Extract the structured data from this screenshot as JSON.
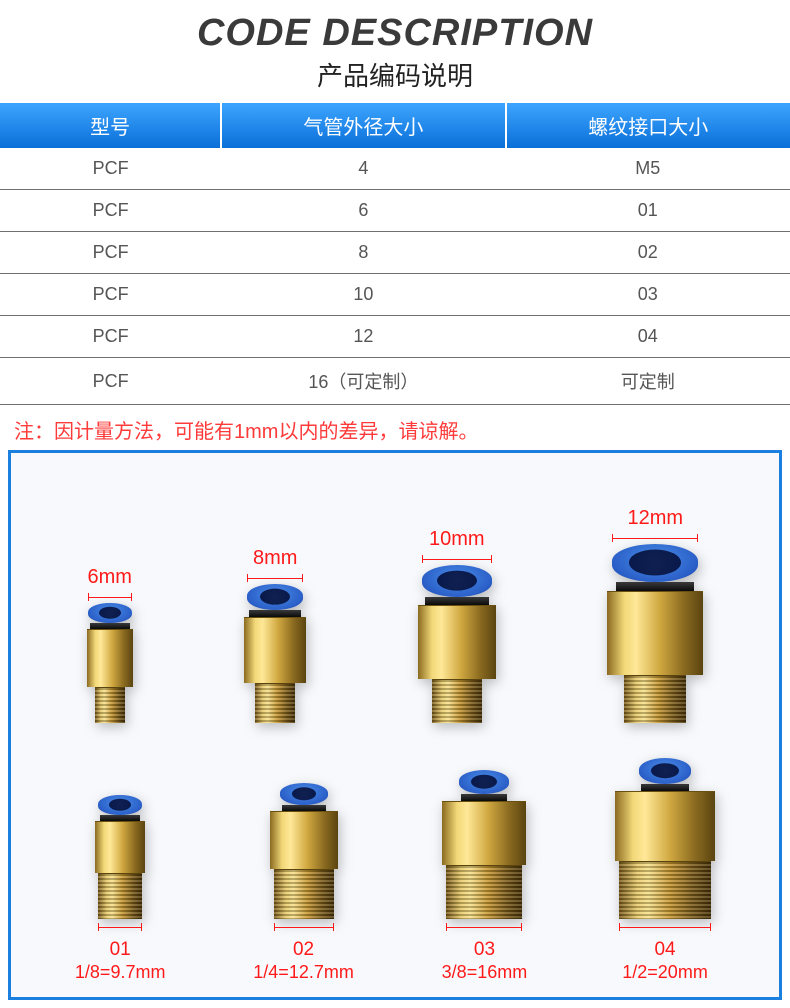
{
  "header": {
    "title_en": "CODE DESCRIPTION",
    "title_cn": "产品编码说明"
  },
  "table": {
    "header_bg_gradient": [
      "#3da5ff",
      "#0a6fd8"
    ],
    "header_text_color": "#ffffff",
    "row_text_color": "#555555",
    "border_color": "#6f6f6f",
    "columns": [
      "型号",
      "气管外径大小",
      "螺纹接口大小"
    ],
    "rows": [
      [
        "PCF",
        "4",
        "M5"
      ],
      [
        "PCF",
        "6",
        "01"
      ],
      [
        "PCF",
        "8",
        "02"
      ],
      [
        "PCF",
        "10",
        "03"
      ],
      [
        "PCF",
        "12",
        "04"
      ],
      [
        "PCF",
        "16（可定制）",
        "可定制"
      ]
    ],
    "col_widths_pct": [
      28,
      36,
      36
    ]
  },
  "note": {
    "label": "注：",
    "text": "因计量方法，可能有1mm以内的差异，请谅解。",
    "color": "#ff3a3a"
  },
  "diagram": {
    "frame_border_color": "#1b7fe0",
    "background_color": "#f7f9fc",
    "label_color": "#ff1a1a",
    "brass_colors": [
      "#8a6a20",
      "#f2d878",
      "#ffe898",
      "#d0a840",
      "#5a4410"
    ],
    "cap_colors": [
      "#4a8de8",
      "#2a5fc8",
      "#1030a0"
    ],
    "top_row": [
      {
        "label": "6mm",
        "cap_w": 44,
        "cap_h": 20,
        "hole_w": 22,
        "hole_h": 12,
        "collar_w": 40,
        "collar_h": 6,
        "body_w": 46,
        "body_h": 58,
        "thread_w": 30,
        "thread_h": 36
      },
      {
        "label": "8mm",
        "cap_w": 56,
        "cap_h": 26,
        "hole_w": 30,
        "hole_h": 16,
        "collar_w": 52,
        "collar_h": 7,
        "body_w": 62,
        "body_h": 66,
        "thread_w": 40,
        "thread_h": 40
      },
      {
        "label": "10mm",
        "cap_w": 70,
        "cap_h": 32,
        "hole_w": 40,
        "hole_h": 20,
        "collar_w": 64,
        "collar_h": 8,
        "body_w": 78,
        "body_h": 74,
        "thread_w": 50,
        "thread_h": 44
      },
      {
        "label": "12mm",
        "cap_w": 86,
        "cap_h": 38,
        "hole_w": 52,
        "hole_h": 26,
        "collar_w": 78,
        "collar_h": 9,
        "body_w": 96,
        "body_h": 84,
        "thread_w": 62,
        "thread_h": 48
      }
    ],
    "bottom_row": [
      {
        "code": "01",
        "sub": "1/8=9.7mm",
        "cap_w": 44,
        "cap_h": 20,
        "hole_w": 22,
        "hole_h": 12,
        "collar_w": 40,
        "collar_h": 6,
        "body_w": 50,
        "body_h": 52,
        "thread_w": 44,
        "thread_h": 46
      },
      {
        "code": "02",
        "sub": "1/4=12.7mm",
        "cap_w": 48,
        "cap_h": 22,
        "hole_w": 24,
        "hole_h": 13,
        "collar_w": 44,
        "collar_h": 6,
        "body_w": 68,
        "body_h": 58,
        "thread_w": 60,
        "thread_h": 50
      },
      {
        "code": "03",
        "sub": "3/8=16mm",
        "cap_w": 50,
        "cap_h": 24,
        "hole_w": 26,
        "hole_h": 14,
        "collar_w": 46,
        "collar_h": 7,
        "body_w": 84,
        "body_h": 64,
        "thread_w": 76,
        "thread_h": 54
      },
      {
        "code": "04",
        "sub": "1/2=20mm",
        "cap_w": 52,
        "cap_h": 26,
        "hole_w": 28,
        "hole_h": 15,
        "collar_w": 48,
        "collar_h": 7,
        "body_w": 100,
        "body_h": 70,
        "thread_w": 92,
        "thread_h": 58
      }
    ]
  }
}
